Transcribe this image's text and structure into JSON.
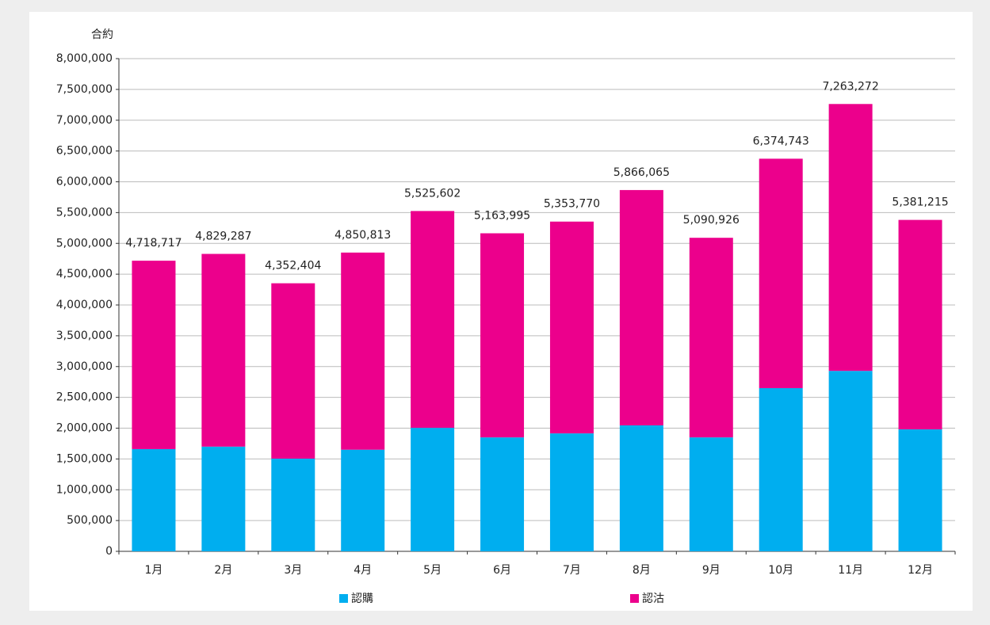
{
  "chart_data": {
    "type": "bar",
    "stacked": true,
    "ylabel": "合約",
    "categories": [
      "1月",
      "2月",
      "3月",
      "4月",
      "5月",
      "6月",
      "7月",
      "8月",
      "9月",
      "10月",
      "11月",
      "12月"
    ],
    "series": [
      {
        "name": "認購",
        "color": "#00aeef",
        "values": [
          1660000,
          1700000,
          1505000,
          1650000,
          2005000,
          1850000,
          1915000,
          2045000,
          1850000,
          2650000,
          2930000,
          1980000
        ]
      },
      {
        "name": "認沽",
        "color": "#ec008c",
        "values": [
          3058717,
          3129287,
          2847404,
          3200813,
          3520602,
          3313995,
          3438770,
          3821065,
          3240926,
          3724743,
          4333272,
          3401215
        ]
      }
    ],
    "totals": [
      4718717,
      4829287,
      4352404,
      4850813,
      5525602,
      5163995,
      5353770,
      5866065,
      5090926,
      6374743,
      7263272,
      5381215
    ],
    "total_labels": [
      "4,718,717",
      "4,829,287",
      "4,352,404",
      "4,850,813",
      "5,525,602",
      "5,163,995",
      "5,353,770",
      "5,866,065",
      "5,090,926",
      "6,374,743",
      "7,263,272",
      "5,381,215"
    ],
    "ylim": [
      0,
      8000000
    ],
    "yticks": [
      0,
      {
        "value": 500000,
        "label": "500,000"
      },
      {
        "value": 1000000,
        "label": "1,000,000"
      },
      {
        "value": 1500000,
        "label": "1,500,000"
      },
      {
        "value": 2000000,
        "label": "2,000,000"
      },
      {
        "value": 2500000,
        "label": "2,500,000"
      },
      {
        "value": 3000000,
        "label": "3,000,000"
      },
      {
        "value": 3500000,
        "label": "3,500,000"
      },
      {
        "value": 4000000,
        "label": "4,000,000"
      },
      {
        "value": 4500000,
        "label": "4,500,000"
      },
      {
        "value": 5000000,
        "label": "5,000,000"
      },
      {
        "value": 5500000,
        "label": "5,500,000"
      },
      {
        "value": 6000000,
        "label": "6,000,000"
      },
      {
        "value": 6500000,
        "label": "6,500,000"
      },
      {
        "value": 7000000,
        "label": "7,000,000"
      },
      {
        "value": 7500000,
        "label": "7,500,000"
      },
      {
        "value": 8000000,
        "label": "8,000,000"
      }
    ],
    "grid": true,
    "legend": "bottom"
  }
}
